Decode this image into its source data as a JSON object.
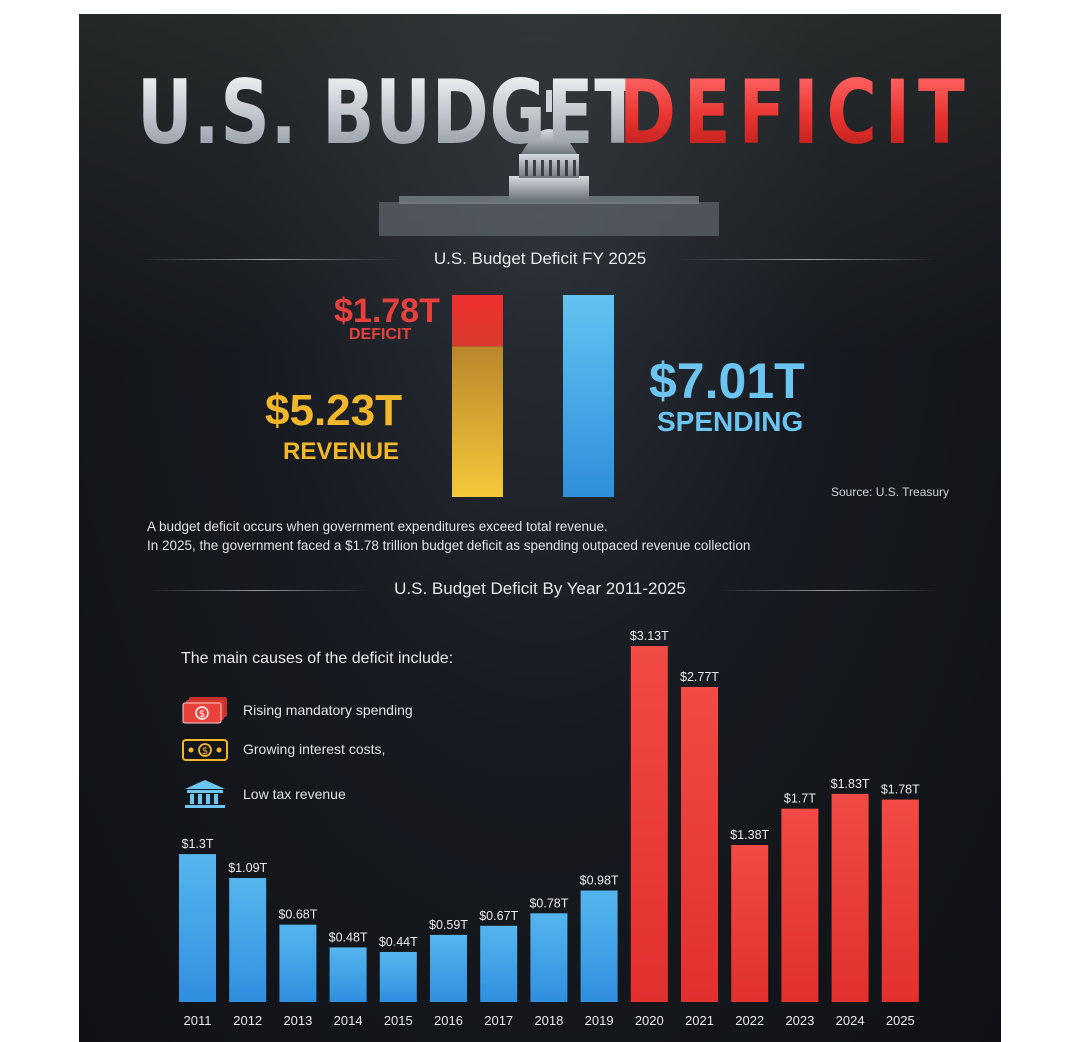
{
  "title": {
    "left": "U.S. BUDGET",
    "right": "DEFICIT"
  },
  "fy": {
    "section_title": "U.S. Budget Deficit FY 2025",
    "deficit_amount": "$1.78T",
    "deficit_label": "DEFICIT",
    "revenue_amount": "$5.23T",
    "revenue_label": "REVENUE",
    "spending_amount": "$7.01T",
    "spending_label": "SPENDING",
    "source": "Source: U.S. Treasury",
    "description_line1": "A budget deficit occurs when government expenditures exceed total revenue.",
    "description_line2": "In 2025, the government faced a $1.78 trillion budget deficit as spending outpaced revenue collection"
  },
  "yearly": {
    "section_title": "U.S. Budget Deficit By Year 2011-2025",
    "causes_title": "The main causes of the deficit include:",
    "causes": [
      {
        "label": "Rising mandatory spending",
        "icon": "cash-stack-icon"
      },
      {
        "label": "Growing interest costs,",
        "icon": "dollar-bill-icon"
      },
      {
        "label": "Low tax revenue",
        "icon": "bank-building-icon"
      }
    ]
  },
  "colors": {
    "deficit_red": "#e8403c",
    "revenue_gold": "#f2b72b",
    "spending_blue": "#6cc4f0",
    "bar_blue": "#3aa0e6",
    "bar_red": "#ec3a36"
  },
  "chart_data": [
    {
      "type": "bar",
      "title": "U.S. Budget Deficit FY 2025",
      "categories": [
        "Revenue + Deficit",
        "Spending"
      ],
      "series": [
        {
          "name": "REVENUE",
          "values": [
            5.23,
            0
          ]
        },
        {
          "name": "DEFICIT",
          "values": [
            1.78,
            0
          ]
        },
        {
          "name": "SPENDING",
          "values": [
            0,
            7.01
          ]
        }
      ],
      "stacked": true,
      "unit": "T"
    },
    {
      "type": "bar",
      "title": "U.S. Budget Deficit By Year 2011-2025",
      "categories": [
        "2011",
        "2012",
        "2013",
        "2014",
        "2015",
        "2016",
        "2017",
        "2018",
        "2019",
        "2020",
        "2021",
        "2022",
        "2023",
        "2024",
        "2025"
      ],
      "values": [
        1.3,
        1.09,
        0.68,
        0.48,
        0.44,
        0.59,
        0.67,
        0.78,
        0.98,
        3.13,
        2.77,
        1.38,
        1.7,
        1.83,
        1.78
      ],
      "labels": [
        "$1.3T",
        "$1.09T",
        "$0.68T",
        "$0.48T",
        "$0.44T",
        "$0.59T",
        "$0.67T",
        "$0.78T",
        "$0.98T",
        "$3.13T",
        "$2.77T",
        "$1.38T",
        "$1.7T",
        "$1.83T",
        "$1.78T"
      ],
      "colors": [
        "blue",
        "blue",
        "blue",
        "blue",
        "blue",
        "blue",
        "blue",
        "blue",
        "blue",
        "red",
        "red",
        "red",
        "red",
        "red",
        "red"
      ],
      "ylim": [
        0,
        3.13
      ],
      "grid": false
    }
  ]
}
